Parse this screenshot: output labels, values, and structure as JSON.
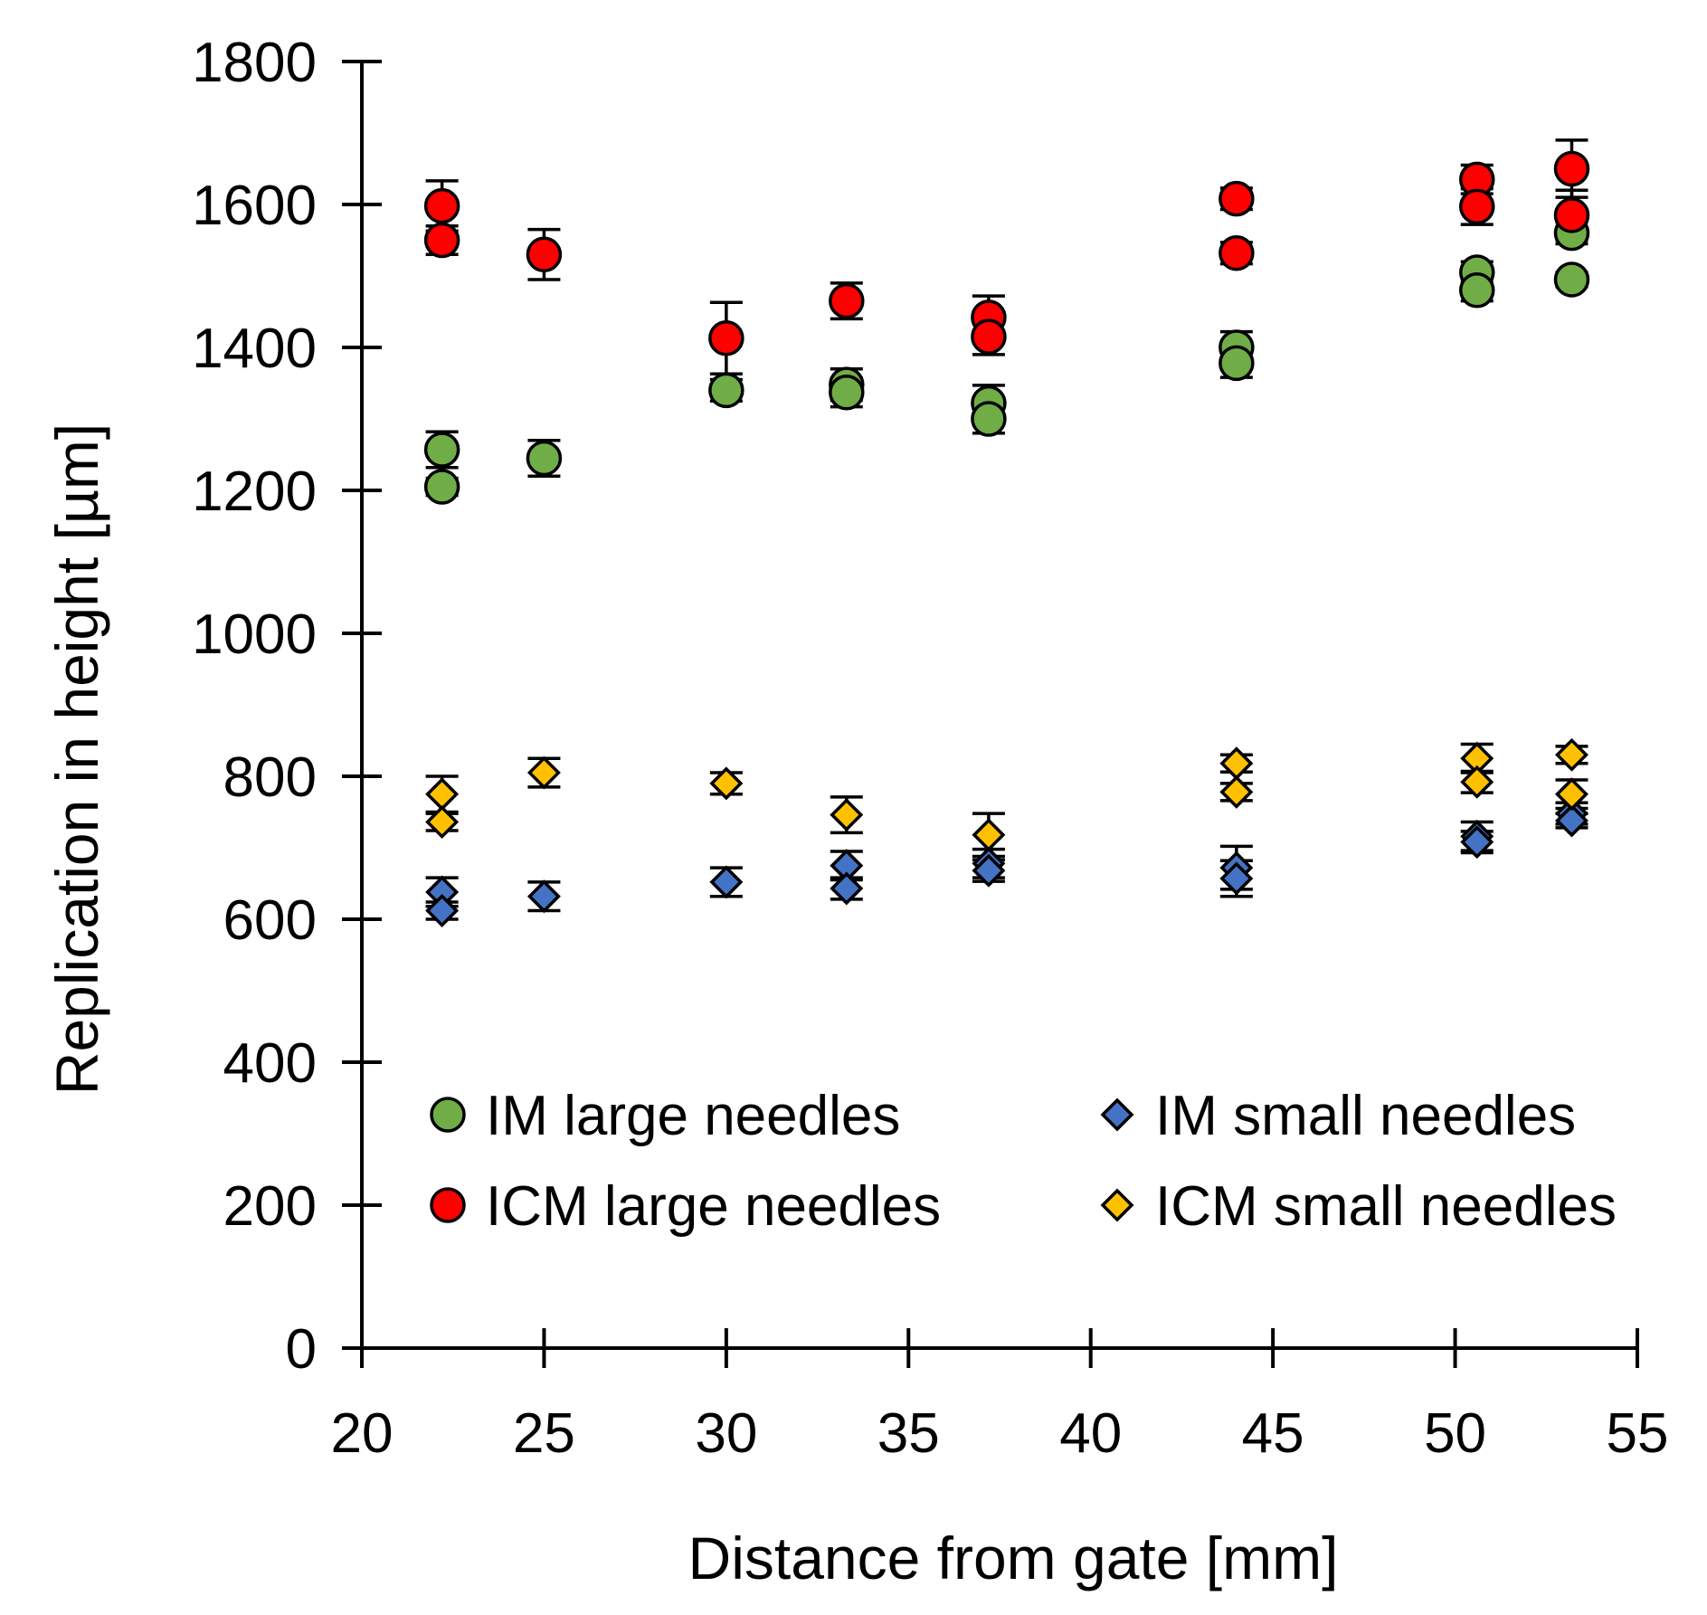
{
  "chart_data": {
    "type": "scatter",
    "title": "",
    "xlabel": "Distance from gate [mm]",
    "ylabel": "Replication in height [µm]",
    "xlim": [
      20,
      55
    ],
    "ylim": [
      0,
      1800
    ],
    "xticks": [
      20,
      25,
      30,
      35,
      40,
      45,
      50,
      55
    ],
    "yticks": [
      0,
      200,
      400,
      600,
      800,
      1000,
      1200,
      1400,
      1600,
      1800
    ],
    "grid": false,
    "legend_position": "bottom-inside",
    "series": [
      {
        "name": "IM large needles",
        "marker": "circle",
        "color": "#70ad47",
        "points": [
          {
            "x": 22.2,
            "y": 1257,
            "err": 25
          },
          {
            "x": 22.2,
            "y": 1205,
            "err": 12
          },
          {
            "x": 25.0,
            "y": 1245,
            "err": 25
          },
          {
            "x": 30.0,
            "y": 1340,
            "err": 15
          },
          {
            "x": 33.3,
            "y": 1348,
            "err": 22
          },
          {
            "x": 33.3,
            "y": 1337,
            "err": 20
          },
          {
            "x": 37.2,
            "y": 1322,
            "err": 25
          },
          {
            "x": 37.2,
            "y": 1300,
            "err": 20
          },
          {
            "x": 44.0,
            "y": 1400,
            "err": 22
          },
          {
            "x": 44.0,
            "y": 1378,
            "err": 20
          },
          {
            "x": 50.6,
            "y": 1505,
            "err": 15
          },
          {
            "x": 50.6,
            "y": 1480,
            "err": 15
          },
          {
            "x": 53.2,
            "y": 1560,
            "err": 15
          },
          {
            "x": 53.2,
            "y": 1495,
            "err": 10
          }
        ]
      },
      {
        "name": "ICM large needles",
        "marker": "circle",
        "color": "#ff0000",
        "points": [
          {
            "x": 22.2,
            "y": 1598,
            "err": 35
          },
          {
            "x": 22.2,
            "y": 1550,
            "err": 20
          },
          {
            "x": 25.0,
            "y": 1530,
            "err": 35
          },
          {
            "x": 30.0,
            "y": 1413,
            "err": 50
          },
          {
            "x": 33.3,
            "y": 1465,
            "err": 25
          },
          {
            "x": 37.2,
            "y": 1442,
            "err": 30
          },
          {
            "x": 37.2,
            "y": 1415,
            "err": 25
          },
          {
            "x": 44.0,
            "y": 1608,
            "err": 15
          },
          {
            "x": 44.0,
            "y": 1532,
            "err": 15
          },
          {
            "x": 50.6,
            "y": 1635,
            "err": 20
          },
          {
            "x": 50.6,
            "y": 1597,
            "err": 25
          },
          {
            "x": 53.2,
            "y": 1650,
            "err": 40
          },
          {
            "x": 53.2,
            "y": 1585,
            "err": 35
          }
        ]
      },
      {
        "name": "IM small needles",
        "marker": "diamond",
        "color": "#4472c4",
        "points": [
          {
            "x": 22.2,
            "y": 638,
            "err": 20
          },
          {
            "x": 22.2,
            "y": 612,
            "err": 12
          },
          {
            "x": 25.0,
            "y": 632,
            "err": 20
          },
          {
            "x": 30.0,
            "y": 652,
            "err": 20
          },
          {
            "x": 33.3,
            "y": 675,
            "err": 20
          },
          {
            "x": 33.3,
            "y": 643,
            "err": 15
          },
          {
            "x": 37.2,
            "y": 678,
            "err": 20
          },
          {
            "x": 37.2,
            "y": 668,
            "err": 15
          },
          {
            "x": 44.0,
            "y": 672,
            "err": 30
          },
          {
            "x": 44.0,
            "y": 657,
            "err": 25
          },
          {
            "x": 50.6,
            "y": 716,
            "err": 20
          },
          {
            "x": 50.6,
            "y": 708,
            "err": 15
          },
          {
            "x": 53.2,
            "y": 748,
            "err": 15
          },
          {
            "x": 53.2,
            "y": 738,
            "err": 10
          }
        ]
      },
      {
        "name": "ICM small needles",
        "marker": "diamond",
        "color": "#ffc000",
        "points": [
          {
            "x": 22.2,
            "y": 775,
            "err": 25
          },
          {
            "x": 22.2,
            "y": 736,
            "err": 12
          },
          {
            "x": 25.0,
            "y": 805,
            "err": 20
          },
          {
            "x": 30.0,
            "y": 790,
            "err": 15
          },
          {
            "x": 33.3,
            "y": 746,
            "err": 25
          },
          {
            "x": 37.2,
            "y": 718,
            "err": 30
          },
          {
            "x": 44.0,
            "y": 818,
            "err": 12
          },
          {
            "x": 44.0,
            "y": 778,
            "err": 12
          },
          {
            "x": 50.6,
            "y": 825,
            "err": 20
          },
          {
            "x": 50.6,
            "y": 792,
            "err": 15
          },
          {
            "x": 53.2,
            "y": 830,
            "err": 12
          },
          {
            "x": 53.2,
            "y": 775,
            "err": 20
          }
        ]
      }
    ]
  }
}
